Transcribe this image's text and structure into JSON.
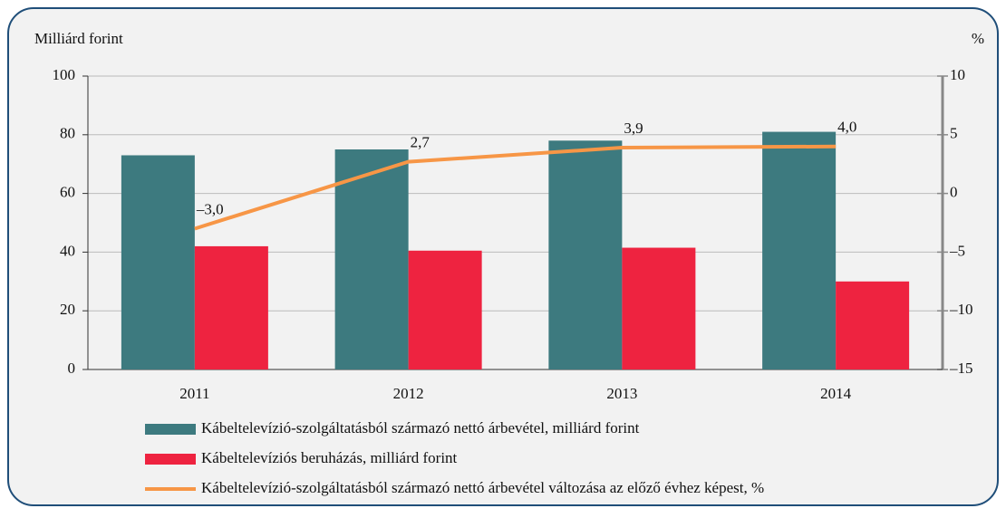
{
  "chart_data": {
    "type": "bar",
    "y_label": "Milliárd forint",
    "y2_label": "%",
    "categories": [
      "2011",
      "2012",
      "2013",
      "2014"
    ],
    "series": [
      {
        "name": "Kábeltelevízió-szolgáltatásból származó nettó árbevétel, milliárd forint",
        "color": "#3d7a7f",
        "values": [
          73,
          75,
          78,
          81
        ]
      },
      {
        "name": "Kábeltelevíziós beruházás, milliárd forint",
        "color": "#ee2340",
        "values": [
          42,
          40.5,
          41.5,
          30
        ]
      },
      {
        "name": "Kábeltelevízió-szolgáltatásból származó nettó árbevétel változása az előző évhez képest, %",
        "color": "#f79646",
        "type": "line",
        "axis": "y2",
        "values": [
          -3.0,
          2.7,
          3.9,
          4.0
        ],
        "value_labels": [
          "–3,0",
          "2,7",
          "3,9",
          "4,0"
        ]
      }
    ],
    "ylim": [
      0,
      100
    ],
    "yticks": [
      0,
      20,
      40,
      60,
      80,
      100
    ],
    "y2lim": [
      -15,
      10
    ],
    "y2ticks": [
      {
        "value": -15,
        "label": "–15"
      },
      {
        "value": -10,
        "label": "–10"
      },
      {
        "value": -5,
        "label": "–5"
      },
      0,
      5,
      10
    ],
    "grid": true
  }
}
